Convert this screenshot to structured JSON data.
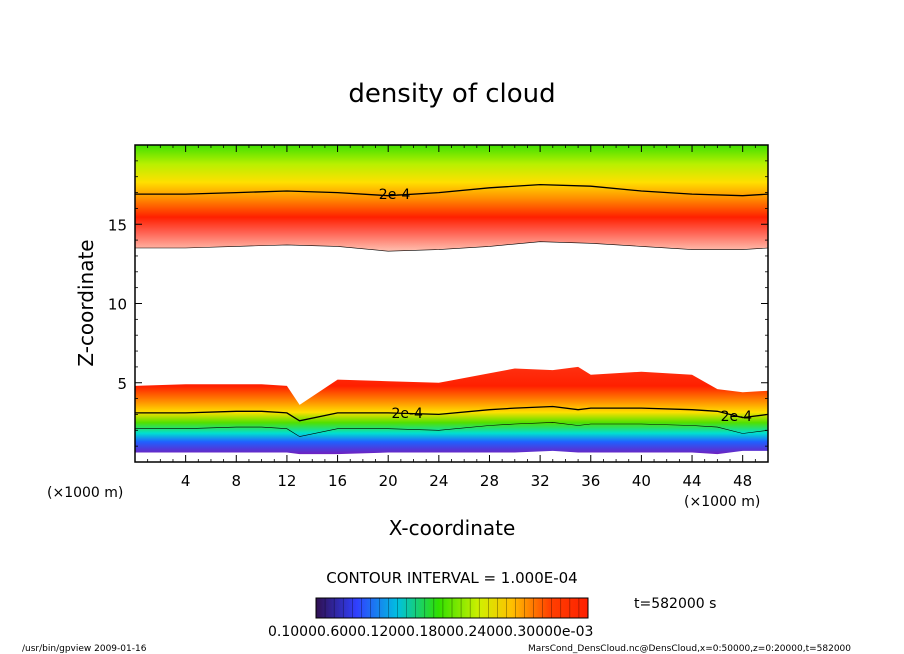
{
  "chart_data": {
    "type": "heatmap",
    "title": "density of cloud",
    "xlabel": "X-coordinate",
    "ylabel": "Z-coordinate",
    "x_unit_left": "(×1000 m)",
    "x_unit_right": "(×1000 m)",
    "xlim": [
      0,
      50
    ],
    "ylim": [
      0,
      20
    ],
    "x_ticks": [
      4,
      8,
      12,
      16,
      20,
      24,
      28,
      32,
      36,
      40,
      44,
      48
    ],
    "y_ticks": [
      5,
      10,
      15
    ],
    "contour_interval": "CONTOUR INTERVAL = 1.000E-04",
    "time_label": "t=582000 s",
    "contour_labels": [
      "2e-4",
      "2e-4",
      "2e-4"
    ],
    "colorbar_labels": "0.10000.6000.12000.18000.24000.30000e-03",
    "upper_layer": {
      "x": [
        0,
        4,
        8,
        12,
        16,
        20,
        24,
        28,
        32,
        36,
        40,
        44,
        48,
        50
      ],
      "lower_edge_z": [
        13.5,
        13.5,
        13.6,
        13.7,
        13.6,
        13.3,
        13.4,
        13.6,
        13.9,
        13.8,
        13.6,
        13.4,
        13.4,
        13.5
      ],
      "contour_2e4_z": [
        16.9,
        16.9,
        17.0,
        17.1,
        17.0,
        16.8,
        17.0,
        17.3,
        17.5,
        17.4,
        17.1,
        16.9,
        16.8,
        16.9
      ],
      "top_z": 20
    },
    "lower_layer": {
      "x": [
        0,
        4,
        8,
        10,
        12,
        13,
        16,
        20,
        24,
        28,
        30,
        33,
        35,
        36,
        40,
        44,
        46,
        48,
        50
      ],
      "top_edge_z": [
        4.8,
        4.9,
        4.9,
        4.9,
        4.8,
        3.6,
        5.2,
        5.1,
        5.0,
        5.6,
        5.9,
        5.8,
        6.0,
        5.5,
        5.7,
        5.5,
        4.6,
        4.4,
        4.5
      ],
      "contour_2e4_z": [
        3.1,
        3.1,
        3.2,
        3.2,
        3.1,
        2.6,
        3.1,
        3.1,
        3.0,
        3.3,
        3.4,
        3.5,
        3.3,
        3.4,
        3.4,
        3.3,
        3.2,
        2.8,
        3.0
      ],
      "bottom_z": [
        0.6,
        0.6,
        0.6,
        0.6,
        0.6,
        0.5,
        0.5,
        0.6,
        0.6,
        0.6,
        0.6,
        0.7,
        0.6,
        0.6,
        0.6,
        0.6,
        0.5,
        0.7,
        0.7
      ]
    },
    "colors": {
      "top": "#40e000",
      "mid": "#ffd000",
      "peak": "#ff2000",
      "fade": "#ffb0a0",
      "cyan": "#00e0e0",
      "blue": "#2040ff",
      "purple": "#8020d0",
      "contour": "#000000"
    }
  },
  "footer": {
    "left": "/usr/bin/gpview   2009-01-16",
    "right": "MarsCond_DensCloud.nc@DensCloud,x=0:50000,z=0:20000,t=582000"
  }
}
